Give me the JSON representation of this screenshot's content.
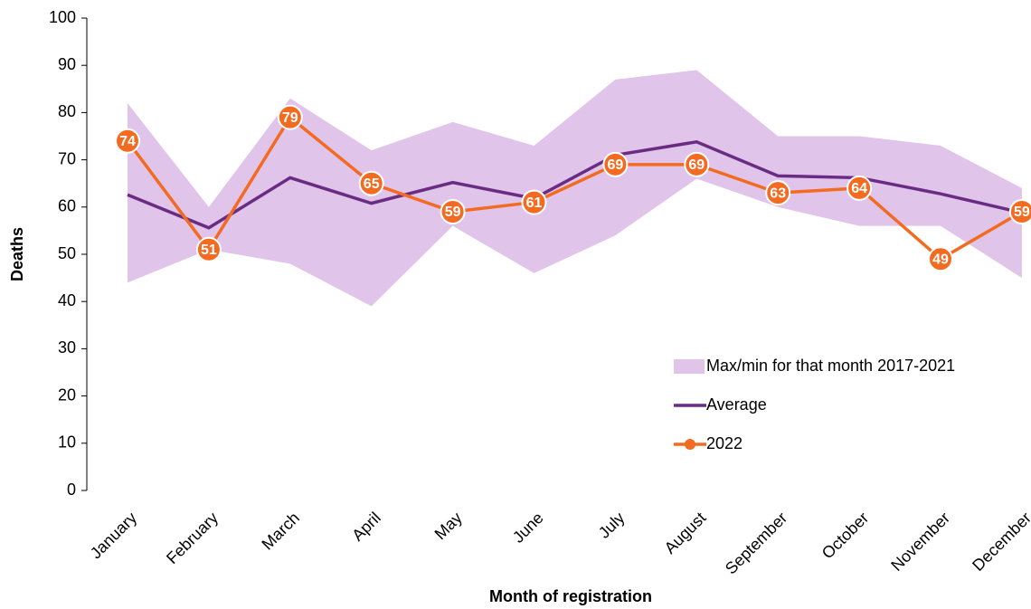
{
  "chart_data": {
    "type": "line",
    "xlabel": "Month of registration",
    "ylabel": "Deaths",
    "categories": [
      "January",
      "February",
      "March",
      "April",
      "May",
      "June",
      "July",
      "August",
      "September",
      "October",
      "November",
      "December"
    ],
    "ylim": [
      0,
      100
    ],
    "yticks": [
      0,
      10,
      20,
      30,
      40,
      50,
      60,
      70,
      80,
      90,
      100
    ],
    "legend": "lower right",
    "series": [
      {
        "name": "Max/min for that month 2017-2021",
        "type": "band",
        "color": "#e0c4ea",
        "max": [
          82,
          60,
          83,
          72,
          78,
          73,
          87,
          89,
          75,
          75,
          73,
          64
        ],
        "min": [
          44,
          51,
          48,
          39,
          56,
          46,
          54,
          66,
          60,
          56,
          56,
          45
        ]
      },
      {
        "name": "Average",
        "type": "line",
        "color": "#6a2c83",
        "values": [
          62.6,
          55.6,
          66.2,
          60.8,
          65.2,
          61.8,
          71,
          73.8,
          66.6,
          66.2,
          62.8,
          58.8
        ]
      },
      {
        "name": "2022",
        "type": "line-marker",
        "color": "#f26b21",
        "values": [
          74,
          51,
          79,
          65,
          59,
          61,
          69,
          69,
          63,
          64,
          49,
          59
        ]
      }
    ]
  }
}
